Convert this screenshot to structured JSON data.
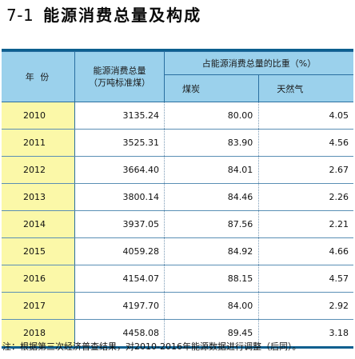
{
  "title": {
    "number": "7-1",
    "name": "能源消费总量及构成"
  },
  "table": {
    "header": {
      "year": "年 份",
      "total_line1": "能源消费总量",
      "total_line2": "（万吨标准煤）",
      "share_group": "占能源消费总量的比重（%）",
      "coal": "煤炭",
      "gas": "天然气"
    },
    "rows": [
      {
        "year": "2010",
        "total": "3135.24",
        "coal": "80.00",
        "gas": "4.05"
      },
      {
        "year": "2011",
        "total": "3525.31",
        "coal": "83.90",
        "gas": "4.56"
      },
      {
        "year": "2012",
        "total": "3664.40",
        "coal": "84.01",
        "gas": "2.67"
      },
      {
        "year": "2013",
        "total": "3800.14",
        "coal": "84.46",
        "gas": "2.26"
      },
      {
        "year": "2014",
        "total": "3937.05",
        "coal": "87.56",
        "gas": "2.21"
      },
      {
        "year": "2015",
        "total": "4059.28",
        "coal": "84.92",
        "gas": "4.66"
      },
      {
        "year": "2016",
        "total": "4154.07",
        "coal": "88.15",
        "gas": "4.57"
      },
      {
        "year": "2017",
        "total": "4197.70",
        "coal": "84.00",
        "gas": "2.92"
      },
      {
        "year": "2018",
        "total": "4458.08",
        "coal": "89.45",
        "gas": "3.18"
      }
    ]
  },
  "note": "注：根据第三次经济普查结果，对2010-2016年能源数据进行调整（后同）。",
  "colors": {
    "header_bg": "#9bd1ec",
    "year_col_bg": "#fbf8a8",
    "rule": "#0d5f8f"
  }
}
